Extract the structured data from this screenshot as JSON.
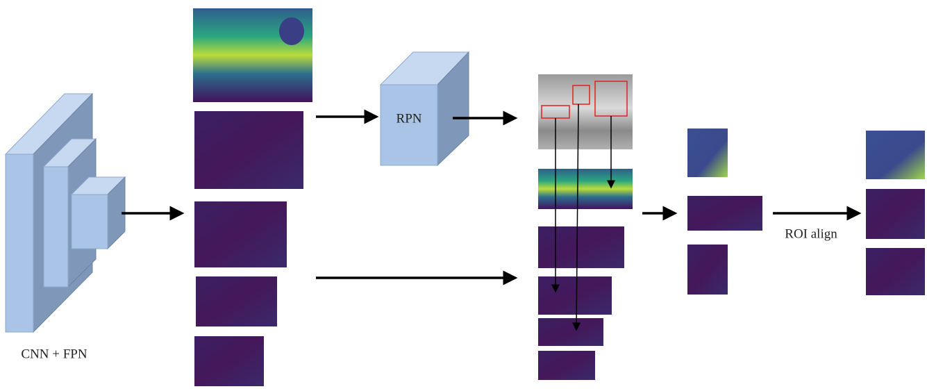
{
  "labels": {
    "backbone": "CNN + FPN",
    "rpn": "RPN",
    "roi_align": "ROI align"
  }
}
